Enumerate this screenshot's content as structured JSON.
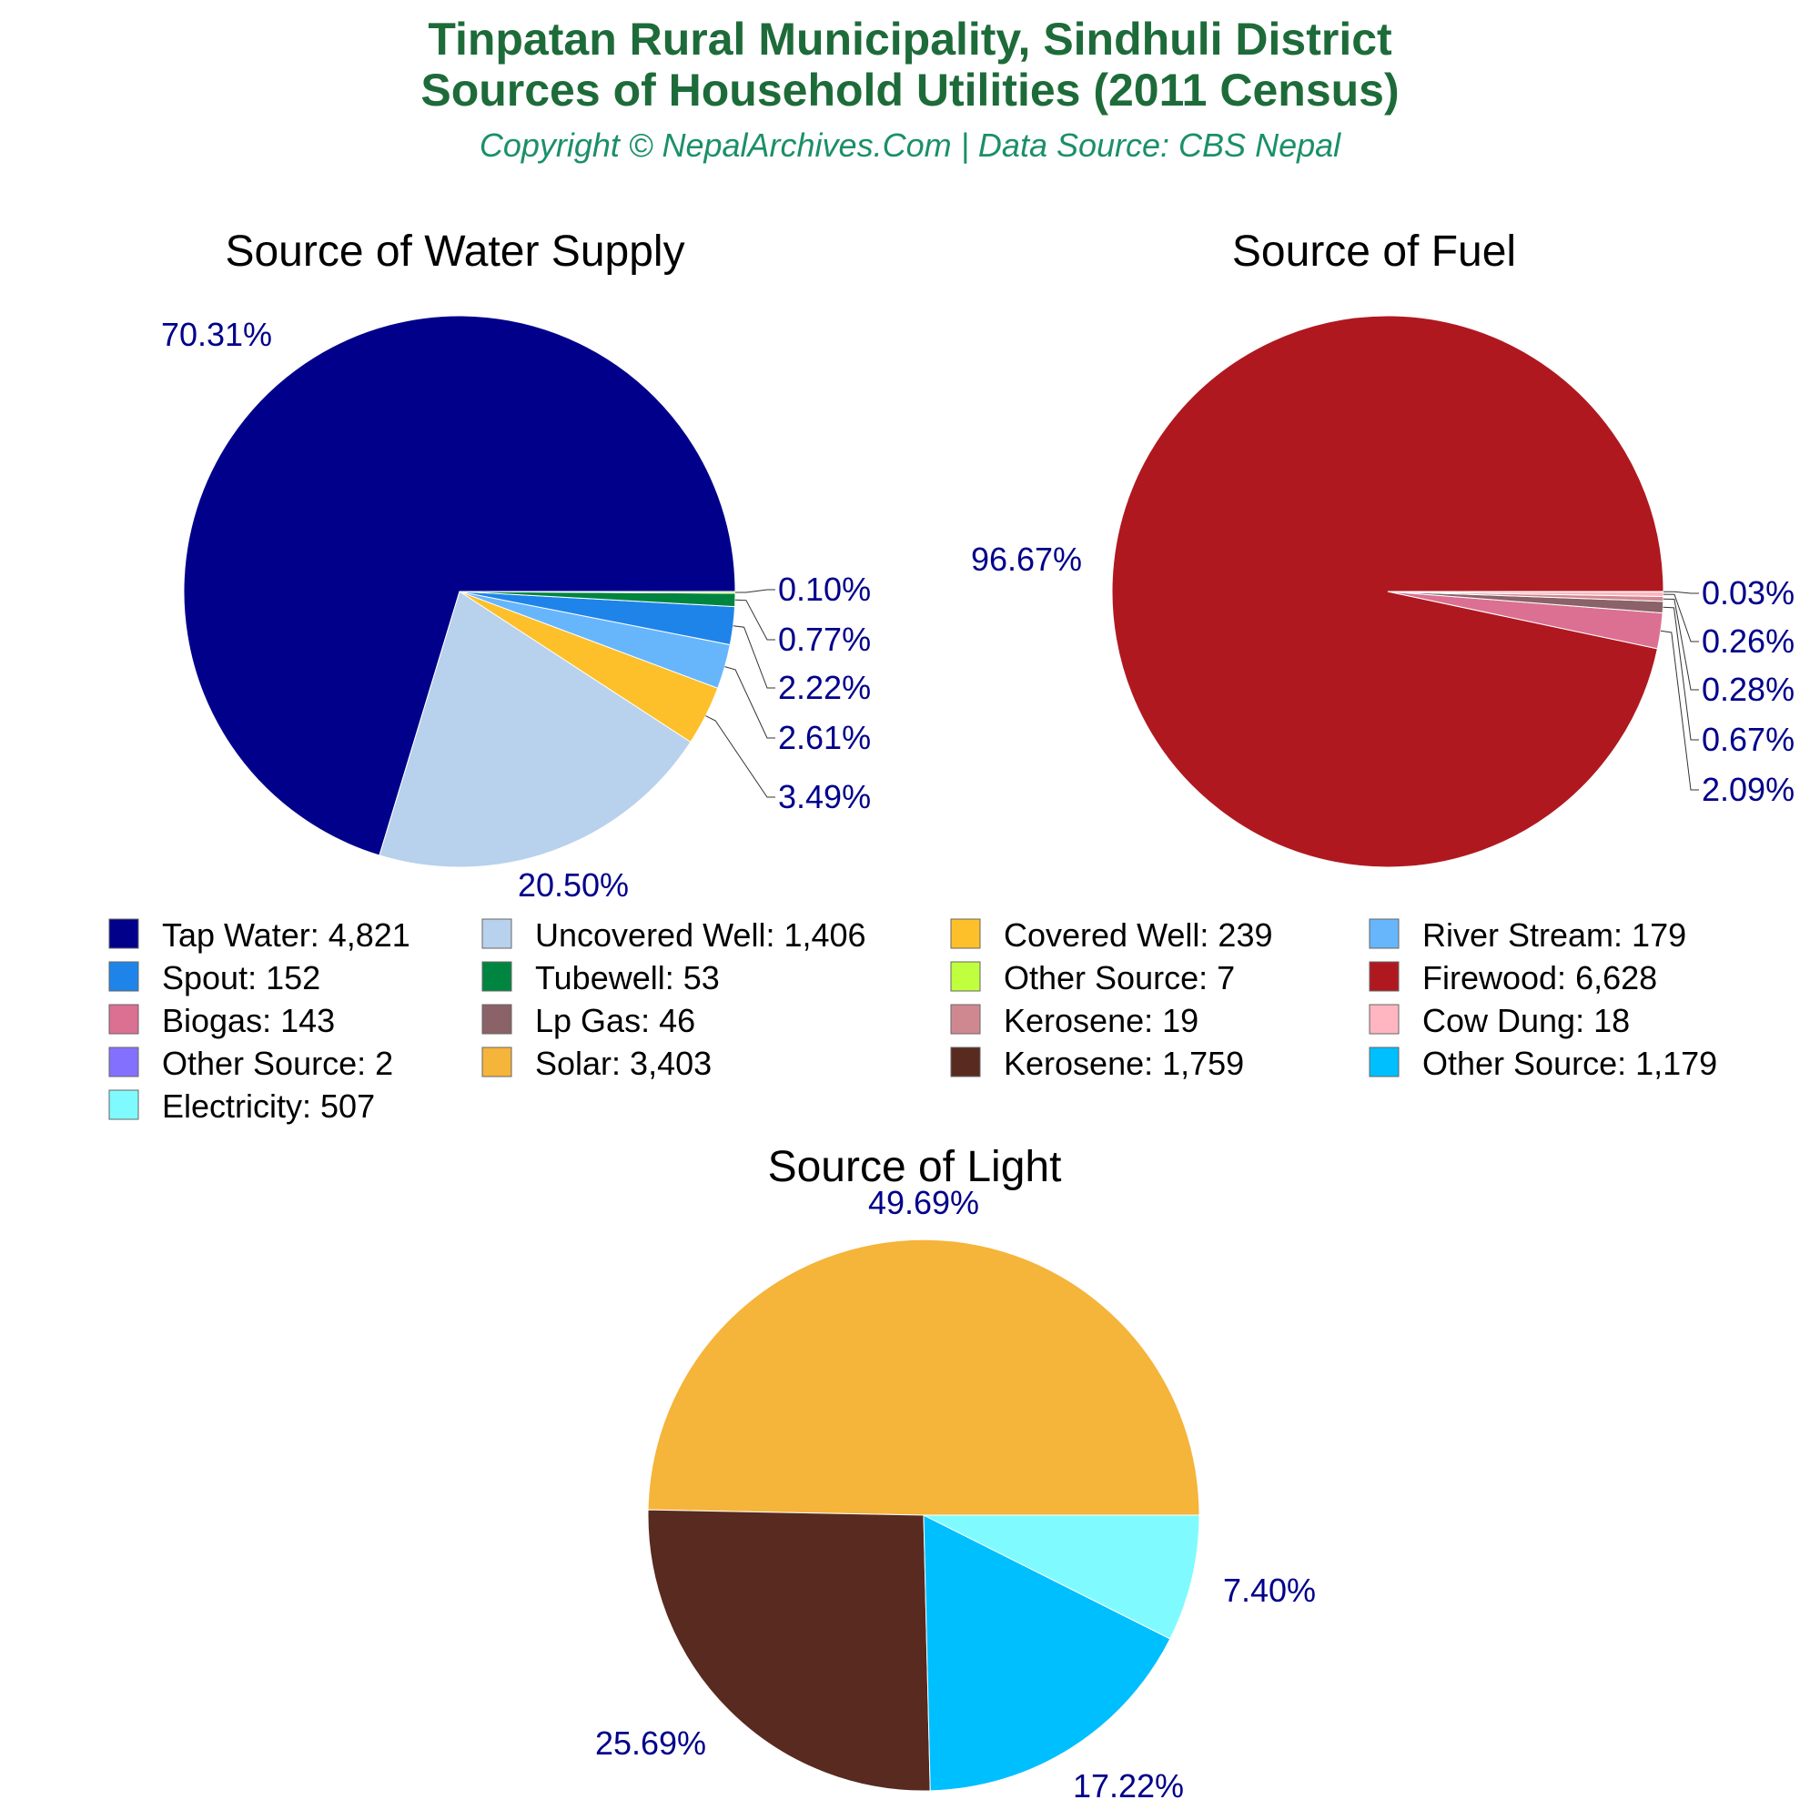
{
  "header": {
    "title_line1": "Tinpatan Rural Municipality, Sindhuli District",
    "title_line2": "Sources of Household Utilities (2011 Census)",
    "subtitle": "Copyright © NepalArchives.Com | Data Source: CBS Nepal"
  },
  "chart_data": [
    {
      "type": "pie",
      "title": "Source of Water Supply",
      "slices": [
        {
          "name": "Tap Water",
          "value": 4821,
          "color": "#00008b"
        },
        {
          "name": "Uncovered Well",
          "value": 1406,
          "color": "#b8d1ec"
        },
        {
          "name": "Covered Well",
          "value": 239,
          "color": "#fdc02a"
        },
        {
          "name": "River Stream",
          "value": 179,
          "color": "#67b6fb"
        },
        {
          "name": "Spout",
          "value": 152,
          "color": "#1e84ea"
        },
        {
          "name": "Tubewell",
          "value": 53,
          "color": "#008540"
        },
        {
          "name": "Other Source",
          "value": 7,
          "color": "#c0ff3e"
        }
      ],
      "percent_labels": [
        "70.31%",
        "20.50%",
        "3.49%",
        "2.61%",
        "2.22%",
        "0.77%",
        "0.10%"
      ]
    },
    {
      "type": "pie",
      "title": "Source of Fuel",
      "slices": [
        {
          "name": "Firewood",
          "value": 6628,
          "color": "#b01820"
        },
        {
          "name": "Biogas",
          "value": 143,
          "color": "#db7093"
        },
        {
          "name": "Lp Gas",
          "value": 46,
          "color": "#8b6268"
        },
        {
          "name": "Kerosene",
          "value": 19,
          "color": "#d08890"
        },
        {
          "name": "Cow Dung",
          "value": 18,
          "color": "#ffb6c1"
        },
        {
          "name": "Other Source",
          "value": 2,
          "color": "#8470ff"
        }
      ],
      "percent_labels": [
        "96.67%",
        "2.09%",
        "0.67%",
        "0.28%",
        "0.26%",
        "0.03%"
      ]
    },
    {
      "type": "pie",
      "title": "Source of Light",
      "slices": [
        {
          "name": "Solar",
          "value": 3403,
          "color": "#f5b43a"
        },
        {
          "name": "Kerosene",
          "value": 1759,
          "color": "#582a20"
        },
        {
          "name": "Other Source",
          "value": 1179,
          "color": "#00bfff"
        },
        {
          "name": "Electricity",
          "value": 507,
          "color": "#7ffbff"
        }
      ],
      "percent_labels": [
        "49.69%",
        "25.69%",
        "17.22%",
        "7.40%"
      ]
    }
  ],
  "legend": [
    {
      "label": "Tap Water: 4,821",
      "color": "#00008b"
    },
    {
      "label": "Uncovered Well: 1,406",
      "color": "#b8d1ec"
    },
    {
      "label": "Covered Well: 239",
      "color": "#fdc02a"
    },
    {
      "label": "River Stream: 179",
      "color": "#67b6fb"
    },
    {
      "label": "Spout: 152",
      "color": "#1e84ea"
    },
    {
      "label": "Tubewell: 53",
      "color": "#008540"
    },
    {
      "label": "Other Source: 7",
      "color": "#c0ff3e"
    },
    {
      "label": "Firewood: 6,628",
      "color": "#b01820"
    },
    {
      "label": "Biogas: 143",
      "color": "#db7093"
    },
    {
      "label": "Lp Gas: 46",
      "color": "#8b6268"
    },
    {
      "label": "Kerosene: 19",
      "color": "#d08890"
    },
    {
      "label": "Cow Dung: 18",
      "color": "#ffb6c1"
    },
    {
      "label": "Other Source: 2",
      "color": "#8470ff"
    },
    {
      "label": "Solar: 3,403",
      "color": "#f5b43a"
    },
    {
      "label": "Kerosene: 1,759",
      "color": "#582a20"
    },
    {
      "label": "Other Source: 1,179",
      "color": "#00bfff"
    },
    {
      "label": "Electricity: 507",
      "color": "#7ffbff"
    }
  ]
}
